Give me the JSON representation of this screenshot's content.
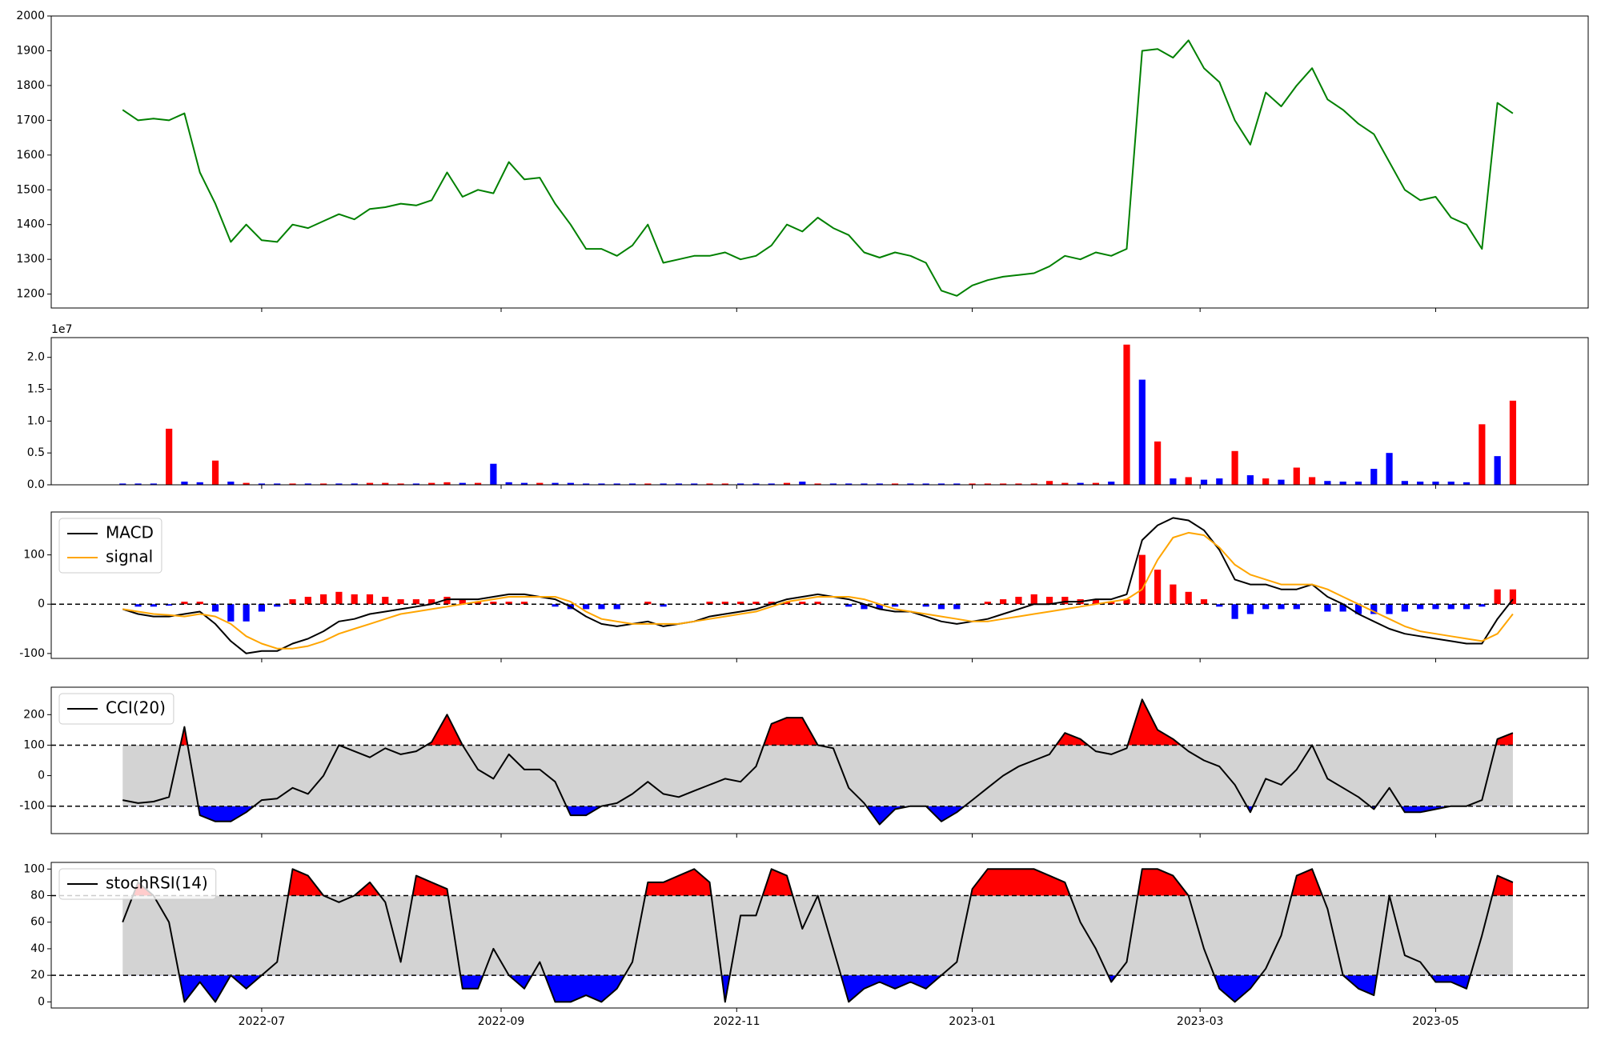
{
  "chart_data": {
    "type": "panels",
    "x": [
      -36,
      -32,
      -28,
      -24,
      -20,
      -16,
      -12,
      -8,
      -4,
      0,
      4,
      8,
      12,
      16,
      20,
      24,
      28,
      32,
      36,
      40,
      44,
      48,
      52,
      56,
      60,
      64,
      68,
      72,
      76,
      80,
      84,
      88,
      92,
      96,
      100,
      104,
      108,
      112,
      116,
      120,
      124,
      128,
      132,
      136,
      140,
      144,
      148,
      152,
      156,
      160,
      164,
      168,
      172,
      176,
      180,
      184,
      188,
      192,
      196,
      200,
      204,
      208,
      212,
      216,
      220,
      224,
      228,
      232,
      236,
      240,
      244,
      248,
      252,
      256,
      260,
      264,
      268,
      272,
      276,
      280,
      284,
      288,
      292,
      296,
      300,
      304,
      308,
      312,
      316,
      320,
      324
    ],
    "xlim": [
      -54.5,
      343.5
    ],
    "xticks": [
      {
        "value": 0,
        "label": "2022-07"
      },
      {
        "value": 62,
        "label": "2022-09"
      },
      {
        "value": 123,
        "label": "2022-11"
      },
      {
        "value": 184,
        "label": "2023-01"
      },
      {
        "value": 243,
        "label": "2023-03"
      },
      {
        "value": 304,
        "label": "2023-05"
      }
    ],
    "panels": [
      {
        "type": "line",
        "color": "#008000",
        "ylim": [
          1160,
          2000
        ],
        "yticks": [
          1200,
          1300,
          1400,
          1500,
          1600,
          1700,
          1800,
          1900,
          2000
        ],
        "values": [
          1730,
          1700,
          1705,
          1700,
          1720,
          1550,
          1460,
          1350,
          1400,
          1355,
          1350,
          1400,
          1390,
          1410,
          1430,
          1415,
          1445,
          1450,
          1460,
          1455,
          1470,
          1550,
          1480,
          1500,
          1490,
          1580,
          1530,
          1535,
          1460,
          1400,
          1330,
          1330,
          1310,
          1340,
          1400,
          1290,
          1300,
          1310,
          1310,
          1320,
          1300,
          1310,
          1340,
          1400,
          1380,
          1420,
          1390,
          1370,
          1320,
          1305,
          1320,
          1310,
          1290,
          1210,
          1195,
          1225,
          1240,
          1250,
          1255,
          1260,
          1280,
          1310,
          1300,
          1320,
          1310,
          1330,
          1900,
          1905,
          1880,
          1930,
          1850,
          1810,
          1700,
          1630,
          1780,
          1740,
          1800,
          1850,
          1760,
          1730,
          1690,
          1660,
          1580,
          1500,
          1470,
          1480,
          1420,
          1400,
          1330,
          1750,
          1720
        ]
      },
      {
        "type": "bar",
        "offset_label": "1e7",
        "ylim": [
          0,
          2.31
        ],
        "yticks": [
          {
            "value": 0,
            "label": "0.0"
          },
          0.5,
          {
            "value": 1,
            "label": "1.0"
          },
          1.5,
          {
            "value": 2,
            "label": "2.0"
          }
        ],
        "values": [
          0.02,
          0.02,
          0.02,
          0.88,
          0.05,
          0.04,
          0.38,
          0.05,
          0.03,
          0.02,
          0.02,
          0.02,
          0.02,
          0.02,
          0.02,
          0.02,
          0.03,
          0.03,
          0.02,
          0.02,
          0.03,
          0.04,
          0.03,
          0.03,
          0.33,
          0.04,
          0.03,
          0.03,
          0.03,
          0.03,
          0.02,
          0.02,
          0.02,
          0.02,
          0.02,
          0.02,
          0.02,
          0.02,
          0.02,
          0.02,
          0.02,
          0.02,
          0.02,
          0.03,
          0.05,
          0.02,
          0.02,
          0.02,
          0.02,
          0.02,
          0.02,
          0.02,
          0.02,
          0.02,
          0.02,
          0.02,
          0.02,
          0.02,
          0.02,
          0.02,
          0.06,
          0.03,
          0.03,
          0.03,
          0.05,
          2.2,
          1.65,
          0.68,
          0.1,
          0.12,
          0.08,
          0.1,
          0.53,
          0.15,
          0.1,
          0.08,
          0.27,
          0.12,
          0.06,
          0.05,
          0.05,
          0.25,
          0.5,
          0.06,
          0.05,
          0.05,
          0.05,
          0.04,
          0.95,
          0.45,
          1.32
        ],
        "colors": [
          "#0000ff",
          "#0000ff",
          "#0000ff",
          "#ff0000",
          "#0000ff",
          "#0000ff",
          "#ff0000",
          "#0000ff",
          "#ff0000",
          "#0000ff",
          "#0000ff",
          "#ff0000",
          "#0000ff",
          "#ff0000",
          "#0000ff",
          "#0000ff",
          "#ff0000",
          "#ff0000",
          "#ff0000",
          "#0000ff",
          "#ff0000",
          "#ff0000",
          "#0000ff",
          "#ff0000",
          "#0000ff",
          "#0000ff",
          "#0000ff",
          "#ff0000",
          "#0000ff",
          "#0000ff",
          "#0000ff",
          "#0000ff",
          "#0000ff",
          "#0000ff",
          "#ff0000",
          "#0000ff",
          "#0000ff",
          "#0000ff",
          "#ff0000",
          "#ff0000",
          "#0000ff",
          "#0000ff",
          "#0000ff",
          "#ff0000",
          "#0000ff",
          "#ff0000",
          "#0000ff",
          "#0000ff",
          "#0000ff",
          "#0000ff",
          "#ff0000",
          "#0000ff",
          "#0000ff",
          "#0000ff",
          "#0000ff",
          "#ff0000",
          "#ff0000",
          "#ff0000",
          "#ff0000",
          "#ff0000",
          "#ff0000",
          "#ff0000",
          "#0000ff",
          "#ff0000",
          "#0000ff",
          "#ff0000",
          "#0000ff",
          "#ff0000",
          "#0000ff",
          "#ff0000",
          "#0000ff",
          "#0000ff",
          "#ff0000",
          "#0000ff",
          "#ff0000",
          "#0000ff",
          "#ff0000",
          "#ff0000",
          "#0000ff",
          "#0000ff",
          "#0000ff",
          "#0000ff",
          "#0000ff",
          "#0000ff",
          "#0000ff",
          "#0000ff",
          "#0000ff",
          "#0000ff",
          "#ff0000",
          "#0000ff",
          "#ff0000"
        ]
      },
      {
        "type": "macd",
        "ylim": [
          -110,
          187
        ],
        "yticks": [
          -100,
          0,
          100
        ],
        "hline": 0,
        "legend": "upper left",
        "series": [
          {
            "name": "MACD",
            "color": "#000000",
            "values": [
              -10,
              -20,
              -25,
              -25,
              -20,
              -15,
              -40,
              -75,
              -100,
              -95,
              -95,
              -80,
              -70,
              -55,
              -35,
              -30,
              -20,
              -15,
              -10,
              -5,
              0,
              10,
              10,
              10,
              15,
              20,
              20,
              15,
              10,
              -5,
              -25,
              -40,
              -45,
              -40,
              -35,
              -45,
              -40,
              -35,
              -25,
              -20,
              -15,
              -10,
              0,
              10,
              15,
              20,
              15,
              10,
              0,
              -10,
              -15,
              -15,
              -25,
              -35,
              -40,
              -35,
              -30,
              -20,
              -10,
              0,
              0,
              5,
              5,
              10,
              10,
              20,
              130,
              160,
              175,
              170,
              150,
              110,
              50,
              40,
              40,
              30,
              30,
              40,
              15,
              0,
              -20,
              -35,
              -50,
              -60,
              -65,
              -70,
              -75,
              -80,
              -80,
              -30,
              10
            ]
          },
          {
            "name": "signal",
            "color": "#ffa500",
            "values": [
              -10,
              -15,
              -20,
              -22,
              -25,
              -20,
              -25,
              -40,
              -65,
              -80,
              -90,
              -90,
              -85,
              -75,
              -60,
              -50,
              -40,
              -30,
              -20,
              -15,
              -10,
              -5,
              0,
              5,
              10,
              15,
              15,
              15,
              15,
              5,
              -15,
              -30,
              -35,
              -40,
              -40,
              -40,
              -40,
              -35,
              -30,
              -25,
              -20,
              -15,
              -5,
              5,
              10,
              15,
              15,
              15,
              10,
              0,
              -10,
              -15,
              -20,
              -25,
              -30,
              -35,
              -35,
              -30,
              -25,
              -20,
              -15,
              -10,
              -5,
              0,
              5,
              10,
              30,
              90,
              135,
              145,
              140,
              115,
              80,
              60,
              50,
              40,
              40,
              40,
              30,
              15,
              0,
              -15,
              -30,
              -45,
              -55,
              -60,
              -65,
              -70,
              -75,
              -60,
              -20
            ]
          }
        ],
        "histogram": {
          "pos_color": "#ff0000",
          "neg_color": "#0000ff",
          "values": [
            0,
            -5,
            -5,
            -3,
            5,
            5,
            -15,
            -35,
            -35,
            -15,
            -5,
            10,
            15,
            20,
            25,
            20,
            20,
            15,
            10,
            10,
            10,
            15,
            10,
            5,
            5,
            5,
            5,
            0,
            -5,
            -10,
            -10,
            -10,
            -10,
            0,
            5,
            -5,
            0,
            0,
            5,
            5,
            5,
            5,
            5,
            5,
            5,
            5,
            0,
            -5,
            -10,
            -10,
            -5,
            0,
            -5,
            -10,
            -10,
            0,
            5,
            10,
            15,
            20,
            15,
            15,
            10,
            10,
            5,
            10,
            100,
            70,
            40,
            25,
            10,
            -5,
            -30,
            -20,
            -10,
            -10,
            -10,
            0,
            -15,
            -15,
            -20,
            -20,
            -20,
            -15,
            -10,
            -10,
            -10,
            -10,
            -5,
            30,
            30
          ]
        }
      },
      {
        "type": "band",
        "ylim": [
          -190,
          290
        ],
        "yticks": [
          -100,
          0,
          100,
          200
        ],
        "upper": 100,
        "lower": -100,
        "legend": "upper left",
        "band_color": "#d3d3d3",
        "upper_color": "#ff0000",
        "lower_color": "#0000ff",
        "series": [
          {
            "name": "CCI(20)",
            "color": "#000000",
            "values": [
              -80,
              -90,
              -85,
              -70,
              160,
              -130,
              -150,
              -150,
              -120,
              -80,
              -75,
              -40,
              -60,
              0,
              100,
              80,
              60,
              90,
              70,
              80,
              110,
              200,
              100,
              20,
              -10,
              70,
              20,
              20,
              -20,
              -130,
              -130,
              -100,
              -90,
              -60,
              -20,
              -60,
              -70,
              -50,
              -30,
              -10,
              -20,
              30,
              170,
              190,
              190,
              100,
              90,
              -40,
              -90,
              -160,
              -110,
              -100,
              -100,
              -150,
              -120,
              -80,
              -40,
              0,
              30,
              50,
              70,
              140,
              120,
              80,
              70,
              90,
              250,
              150,
              120,
              80,
              50,
              30,
              -30,
              -120,
              -10,
              -30,
              20,
              100,
              -10,
              -40,
              -70,
              -110,
              -40,
              -120,
              -120,
              -110,
              -100,
              -100,
              -80,
              120,
              140
            ]
          }
        ]
      },
      {
        "type": "band",
        "ylim": [
          -4.6,
          105
        ],
        "yticks": [
          0,
          20,
          40,
          60,
          80,
          100
        ],
        "upper": 80,
        "lower": 20,
        "legend": "upper left",
        "band_color": "#d3d3d3",
        "upper_color": "#ff0000",
        "lower_color": "#0000ff",
        "series": [
          {
            "name": "stochRSI(14)",
            "color": "#000000",
            "values": [
              60,
              90,
              80,
              60,
              0,
              15,
              0,
              20,
              10,
              20,
              30,
              100,
              95,
              80,
              75,
              80,
              90,
              75,
              30,
              95,
              90,
              85,
              10,
              10,
              40,
              20,
              10,
              30,
              0,
              0,
              5,
              0,
              10,
              30,
              90,
              90,
              95,
              100,
              90,
              0,
              65,
              65,
              100,
              95,
              55,
              80,
              40,
              0,
              10,
              15,
              10,
              15,
              10,
              20,
              30,
              85,
              100,
              100,
              100,
              100,
              95,
              90,
              60,
              40,
              15,
              30,
              100,
              100,
              95,
              80,
              40,
              10,
              0,
              10,
              25,
              50,
              95,
              100,
              70,
              20,
              10,
              5,
              80,
              35,
              30,
              15,
              15,
              10,
              50,
              95,
              90
            ]
          }
        ]
      }
    ]
  }
}
